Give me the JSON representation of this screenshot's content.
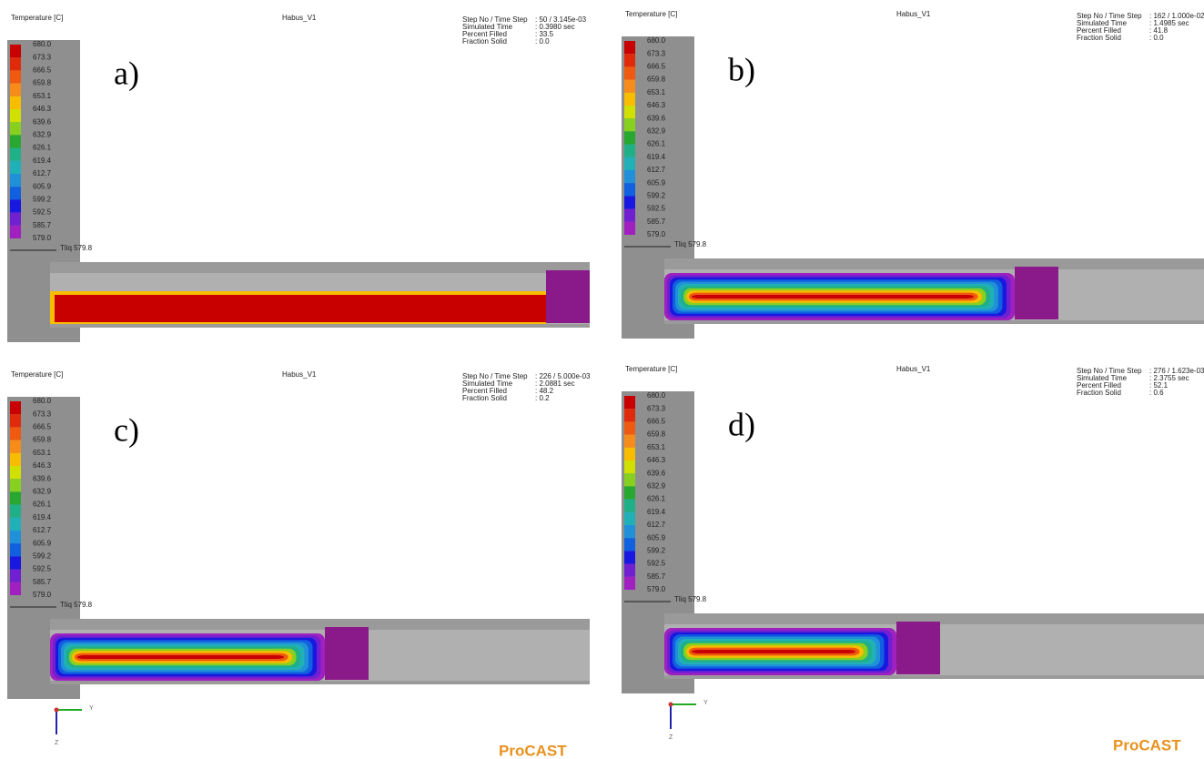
{
  "legend": [
    "680.0",
    "673.3",
    "666.5",
    "659.8",
    "653.1",
    "646.3",
    "639.6",
    "632.9",
    "626.1",
    "619.4",
    "612.7",
    "605.9",
    "599.2",
    "592.5",
    "585.7",
    "579.0"
  ],
  "panels": [
    {
      "title": "Temperature [C]",
      "model": "Habus_V1",
      "label": "a)",
      "tliq": "Tliq  579.8",
      "info": [
        [
          "Step No / Time Step",
          ": 50 / 3.145e-03"
        ],
        [
          "Simulated Time",
          ": 0.3980 sec"
        ],
        [
          "Percent Filled",
          ": 33.5"
        ],
        [
          "Fraction Solid",
          ": 0.0"
        ]
      ]
    },
    {
      "title": "Temperature [C]",
      "model": "Habus_V1",
      "label": "b)",
      "tliq": "Tliq  579.8",
      "info": [
        [
          "Step No / Time Step",
          ": 162 / 1.000e-02"
        ],
        [
          "Simulated Time",
          ": 1.4985 sec"
        ],
        [
          "Percent Filled",
          ": 41.8"
        ],
        [
          "Fraction Solid",
          ": 0.0"
        ]
      ]
    },
    {
      "title": "Temperature [C]",
      "model": "Habus_V1",
      "label": "c)",
      "tliq": "Tliq  579.8",
      "info": [
        [
          "Step No / Time Step",
          ": 226 / 5.000e-03"
        ],
        [
          "Simulated Time",
          ": 2.0881 sec"
        ],
        [
          "Percent Filled",
          ": 48.2"
        ],
        [
          "Fraction Solid",
          ": 0.2"
        ]
      ],
      "axis_y": "Y",
      "axis_z": "Z",
      "brand": "ProCAST"
    },
    {
      "title": "Temperature [C]",
      "model": "Habus_V1",
      "label": "d)",
      "tliq": "Tliq  579.8",
      "info": [
        [
          "Step No / Time Step",
          ": 276 / 1.623e-03"
        ],
        [
          "Simulated Time",
          ": 2.3755 sec"
        ],
        [
          "Percent Filled",
          ": 52.1"
        ],
        [
          "Fraction Solid",
          ": 0.6"
        ]
      ],
      "axis_y": "Y",
      "axis_z": "Z",
      "brand": "ProCAST"
    }
  ]
}
